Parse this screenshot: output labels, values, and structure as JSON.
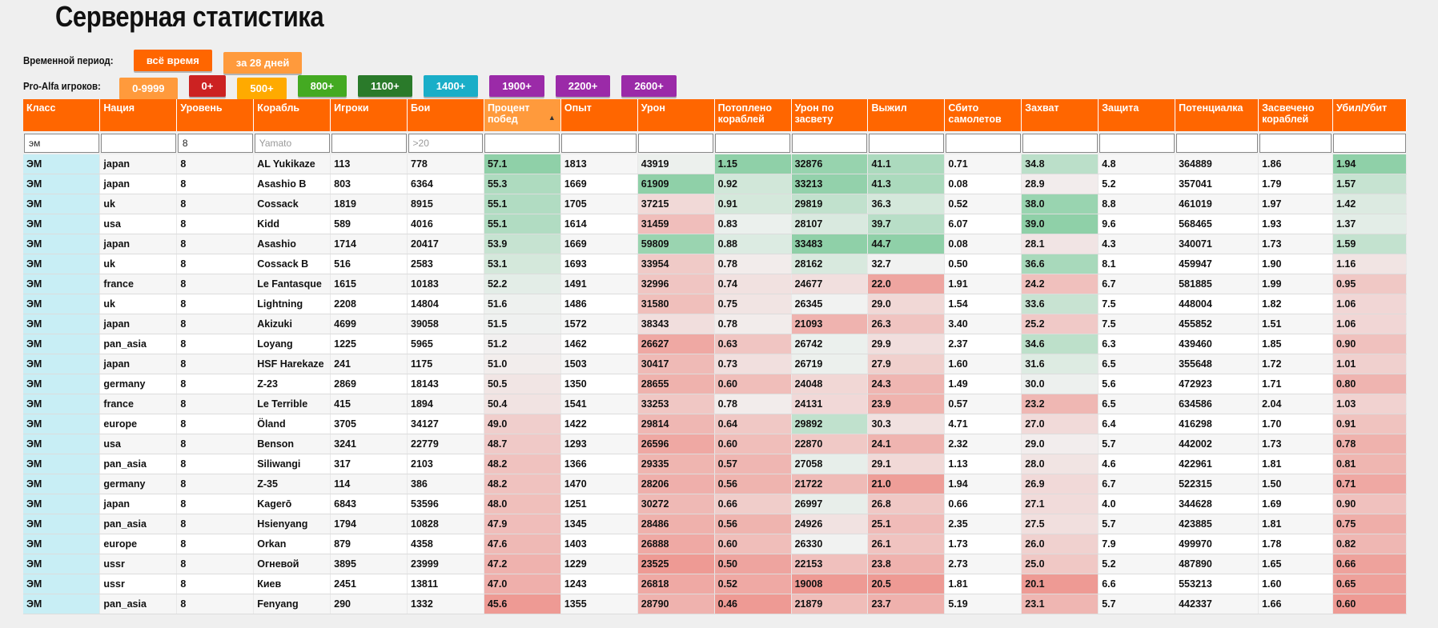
{
  "page": {
    "title": "Серверная статистика"
  },
  "filters": {
    "period_label": "Временной период:",
    "period_options": [
      {
        "label": "всё время",
        "color": "#ff6600"
      },
      {
        "label": "за 28 дней",
        "color": "#ff9a3c"
      }
    ],
    "players_label": "Pro-Alfa игроков:",
    "players_options": [
      {
        "label": "0-9999",
        "color": "#ff9a3c"
      },
      {
        "label": "0+",
        "color": "#cc2222"
      },
      {
        "label": "500+",
        "color": "#ffaa00"
      },
      {
        "label": "800+",
        "color": "#44aa22"
      },
      {
        "label": "1100+",
        "color": "#2a7a2a"
      },
      {
        "label": "1400+",
        "color": "#1aaec8"
      },
      {
        "label": "1900+",
        "color": "#9b2aa8"
      },
      {
        "label": "2200+",
        "color": "#9b2aa8"
      },
      {
        "label": "2600+",
        "color": "#9b2aa8"
      }
    ]
  },
  "table": {
    "headers": [
      "Класс",
      "Нация",
      "Уровень",
      "Корабль",
      "Игроки",
      "Бои",
      "Процент побед",
      "Опыт",
      "Урон",
      "Потоплено кораблей",
      "Урон по засвету",
      "Выжил",
      "Сбито самолетов",
      "Захват",
      "Защита",
      "Потенциалка",
      "Засвечено кораблей",
      "Убил/Убит"
    ],
    "sorted_column": 6,
    "filter_inputs": [
      {
        "value": "эм",
        "placeholder": ""
      },
      {
        "value": "",
        "placeholder": ""
      },
      {
        "value": "8",
        "placeholder": ""
      },
      {
        "value": "",
        "placeholder": "Yamato"
      },
      {
        "value": "",
        "placeholder": ""
      },
      {
        "value": "",
        "placeholder": ">20"
      },
      {
        "value": "",
        "placeholder": ""
      },
      {
        "value": "",
        "placeholder": ""
      },
      {
        "value": "",
        "placeholder": ""
      },
      {
        "value": "",
        "placeholder": ""
      },
      {
        "value": "",
        "placeholder": ""
      },
      {
        "value": "",
        "placeholder": ""
      },
      {
        "value": "",
        "placeholder": ""
      },
      {
        "value": "",
        "placeholder": ""
      },
      {
        "value": "",
        "placeholder": ""
      },
      {
        "value": "",
        "placeholder": ""
      },
      {
        "value": "",
        "placeholder": ""
      },
      {
        "value": "",
        "placeholder": ""
      }
    ],
    "heat_columns": [
      6,
      8,
      9,
      10,
      11,
      13,
      17
    ],
    "heat_colors": {
      "high": "#8fd0a8",
      "mid": "#f2f2f2",
      "low": "#ee9a94"
    },
    "rows": [
      [
        "ЭМ",
        "japan",
        "8",
        "AL Yukikaze",
        "113",
        "778",
        "57.1",
        "1813",
        "43919",
        "1.15",
        "32876",
        "41.1",
        "0.71",
        "34.8",
        "4.8",
        "364889",
        "1.86",
        "1.94"
      ],
      [
        "ЭМ",
        "japan",
        "8",
        "Asashio B",
        "803",
        "6364",
        "55.3",
        "1669",
        "61909",
        "0.92",
        "33213",
        "41.3",
        "0.08",
        "28.9",
        "5.2",
        "357041",
        "1.79",
        "1.57"
      ],
      [
        "ЭМ",
        "uk",
        "8",
        "Cossack",
        "1819",
        "8915",
        "55.1",
        "1705",
        "37215",
        "0.91",
        "29819",
        "36.3",
        "0.52",
        "38.0",
        "8.8",
        "461019",
        "1.97",
        "1.42"
      ],
      [
        "ЭМ",
        "usa",
        "8",
        "Kidd",
        "589",
        "4016",
        "55.1",
        "1614",
        "31459",
        "0.83",
        "28107",
        "39.7",
        "6.07",
        "39.0",
        "9.6",
        "568465",
        "1.93",
        "1.37"
      ],
      [
        "ЭМ",
        "japan",
        "8",
        "Asashio",
        "1714",
        "20417",
        "53.9",
        "1669",
        "59809",
        "0.88",
        "33483",
        "44.7",
        "0.08",
        "28.1",
        "4.3",
        "340071",
        "1.73",
        "1.59"
      ],
      [
        "ЭМ",
        "uk",
        "8",
        "Cossack B",
        "516",
        "2583",
        "53.1",
        "1693",
        "33954",
        "0.78",
        "28162",
        "32.7",
        "0.50",
        "36.6",
        "8.1",
        "459947",
        "1.90",
        "1.16"
      ],
      [
        "ЭМ",
        "france",
        "8",
        "Le Fantasque",
        "1615",
        "10183",
        "52.2",
        "1491",
        "32996",
        "0.74",
        "24677",
        "22.0",
        "1.91",
        "24.2",
        "6.7",
        "581885",
        "1.99",
        "0.95"
      ],
      [
        "ЭМ",
        "uk",
        "8",
        "Lightning",
        "2208",
        "14804",
        "51.6",
        "1486",
        "31580",
        "0.75",
        "26345",
        "29.0",
        "1.54",
        "33.6",
        "7.5",
        "448004",
        "1.82",
        "1.06"
      ],
      [
        "ЭМ",
        "japan",
        "8",
        "Akizuki",
        "4699",
        "39058",
        "51.5",
        "1572",
        "38343",
        "0.78",
        "21093",
        "26.3",
        "3.40",
        "25.2",
        "7.5",
        "455852",
        "1.51",
        "1.06"
      ],
      [
        "ЭМ",
        "pan_asia",
        "8",
        "Loyang",
        "1225",
        "5965",
        "51.2",
        "1462",
        "26627",
        "0.63",
        "26742",
        "29.9",
        "2.37",
        "34.6",
        "6.3",
        "439460",
        "1.85",
        "0.90"
      ],
      [
        "ЭМ",
        "japan",
        "8",
        "HSF Harekaze",
        "241",
        "1175",
        "51.0",
        "1503",
        "30417",
        "0.73",
        "26719",
        "27.9",
        "1.60",
        "31.6",
        "6.5",
        "355648",
        "1.72",
        "1.01"
      ],
      [
        "ЭМ",
        "germany",
        "8",
        "Z-23",
        "2869",
        "18143",
        "50.5",
        "1350",
        "28655",
        "0.60",
        "24048",
        "24.3",
        "1.49",
        "30.0",
        "5.6",
        "472923",
        "1.71",
        "0.80"
      ],
      [
        "ЭМ",
        "france",
        "8",
        "Le Terrible",
        "415",
        "1894",
        "50.4",
        "1541",
        "33253",
        "0.78",
        "24131",
        "23.9",
        "0.57",
        "23.2",
        "6.5",
        "634586",
        "2.04",
        "1.03"
      ],
      [
        "ЭМ",
        "europe",
        "8",
        "Öland",
        "3705",
        "34127",
        "49.0",
        "1422",
        "29814",
        "0.64",
        "29892",
        "30.3",
        "4.71",
        "27.0",
        "6.4",
        "416298",
        "1.70",
        "0.91"
      ],
      [
        "ЭМ",
        "usa",
        "8",
        "Benson",
        "3241",
        "22779",
        "48.7",
        "1293",
        "26596",
        "0.60",
        "22870",
        "24.1",
        "2.32",
        "29.0",
        "5.7",
        "442002",
        "1.73",
        "0.78"
      ],
      [
        "ЭМ",
        "pan_asia",
        "8",
        "Siliwangi",
        "317",
        "2103",
        "48.2",
        "1366",
        "29335",
        "0.57",
        "27058",
        "29.1",
        "1.13",
        "28.0",
        "4.6",
        "422961",
        "1.81",
        "0.81"
      ],
      [
        "ЭМ",
        "germany",
        "8",
        "Z-35",
        "114",
        "386",
        "48.2",
        "1470",
        "28206",
        "0.56",
        "21722",
        "21.0",
        "1.94",
        "26.9",
        "6.7",
        "522315",
        "1.50",
        "0.71"
      ],
      [
        "ЭМ",
        "japan",
        "8",
        "Kagerō",
        "6843",
        "53596",
        "48.0",
        "1251",
        "30272",
        "0.66",
        "26997",
        "26.8",
        "0.66",
        "27.1",
        "4.0",
        "344628",
        "1.69",
        "0.90"
      ],
      [
        "ЭМ",
        "pan_asia",
        "8",
        "Hsienyang",
        "1794",
        "10828",
        "47.9",
        "1345",
        "28486",
        "0.56",
        "24926",
        "25.1",
        "2.35",
        "27.5",
        "5.7",
        "423885",
        "1.81",
        "0.75"
      ],
      [
        "ЭМ",
        "europe",
        "8",
        "Orkan",
        "879",
        "4358",
        "47.6",
        "1403",
        "26888",
        "0.60",
        "26330",
        "26.1",
        "1.73",
        "26.0",
        "7.9",
        "499970",
        "1.78",
        "0.82"
      ],
      [
        "ЭМ",
        "ussr",
        "8",
        "Огневой",
        "3895",
        "23999",
        "47.2",
        "1229",
        "23525",
        "0.50",
        "22153",
        "23.8",
        "2.73",
        "25.0",
        "5.2",
        "487890",
        "1.65",
        "0.66"
      ],
      [
        "ЭМ",
        "ussr",
        "8",
        "Киев",
        "2451",
        "13811",
        "47.0",
        "1243",
        "26818",
        "0.52",
        "19008",
        "20.5",
        "1.81",
        "20.1",
        "6.6",
        "553213",
        "1.60",
        "0.65"
      ],
      [
        "ЭМ",
        "pan_asia",
        "8",
        "Fenyang",
        "290",
        "1332",
        "45.6",
        "1355",
        "28790",
        "0.46",
        "21879",
        "23.7",
        "5.19",
        "23.1",
        "5.7",
        "442337",
        "1.66",
        "0.60"
      ]
    ]
  }
}
